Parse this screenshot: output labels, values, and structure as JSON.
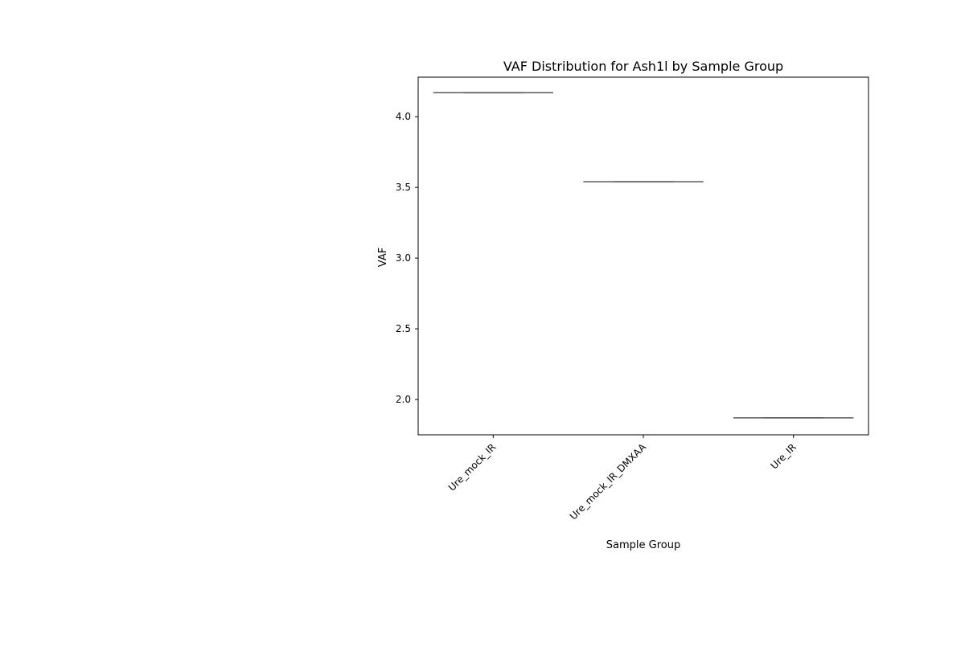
{
  "chart_data": {
    "type": "box",
    "title": "VAF Distribution for Ash1l by Sample Group",
    "xlabel": "Sample Group",
    "ylabel": "VAF",
    "categories": [
      "Ure_mock_IR",
      "Ure_mock_IR_DMXAA",
      "Ure_IR"
    ],
    "values": [
      4.17,
      3.54,
      1.87
    ],
    "ylim": [
      1.75,
      4.28
    ],
    "yticks": [
      {
        "value": 2.0,
        "label": "2.0"
      },
      {
        "value": 2.5,
        "label": "2.5"
      },
      {
        "value": 3.0,
        "label": "3.0"
      },
      {
        "value": 3.5,
        "label": "3.5"
      },
      {
        "value": 4.0,
        "label": "4.0"
      }
    ],
    "xtick_rotation": 45,
    "grid": false,
    "line_color": "#595959"
  }
}
